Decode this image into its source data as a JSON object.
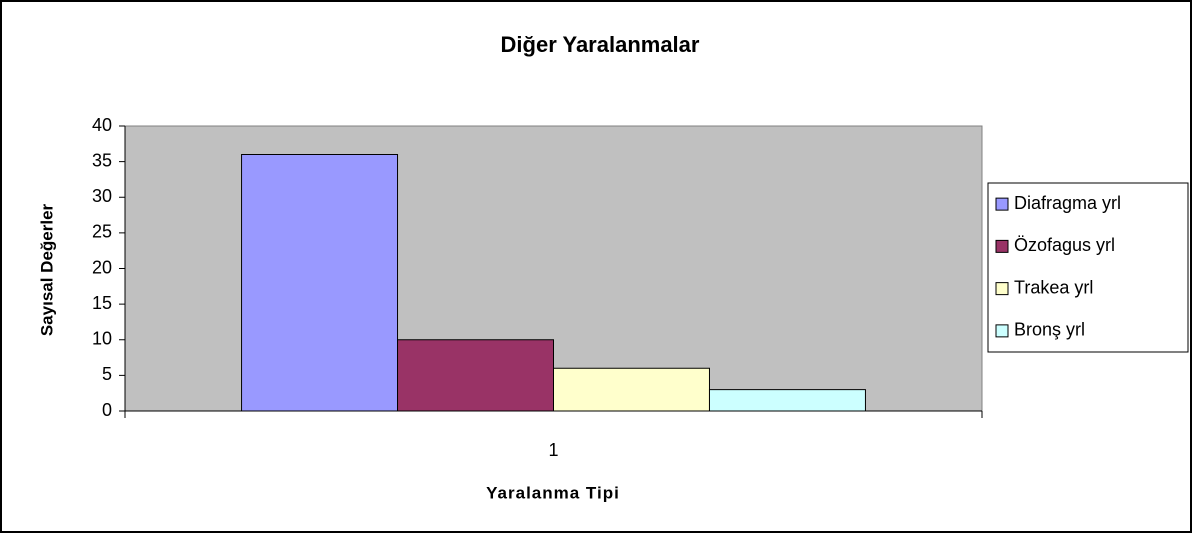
{
  "chart_data": {
    "type": "bar",
    "title": "Diğer Yaralanmalar",
    "x_label": "Yaralanma Tipi",
    "y_label": "Sayısal Değerler",
    "categories": [
      "1"
    ],
    "series": [
      {
        "name": "Diafragma yrl",
        "color": "#9999ff",
        "values": [
          36
        ]
      },
      {
        "name": "Özofagus yrl",
        "color": "#993366",
        "values": [
          10
        ]
      },
      {
        "name": "Trakea yrl",
        "color": "#ffffcc",
        "values": [
          6
        ]
      },
      {
        "name": "Bronş yrl",
        "color": "#ccffff",
        "values": [
          3
        ]
      }
    ],
    "ylim": [
      0,
      40
    ],
    "yticks": [
      0,
      5,
      10,
      15,
      20,
      25,
      30,
      35,
      40
    ],
    "grid": false,
    "legend": "right",
    "plot_background": "#c0c0c0"
  }
}
